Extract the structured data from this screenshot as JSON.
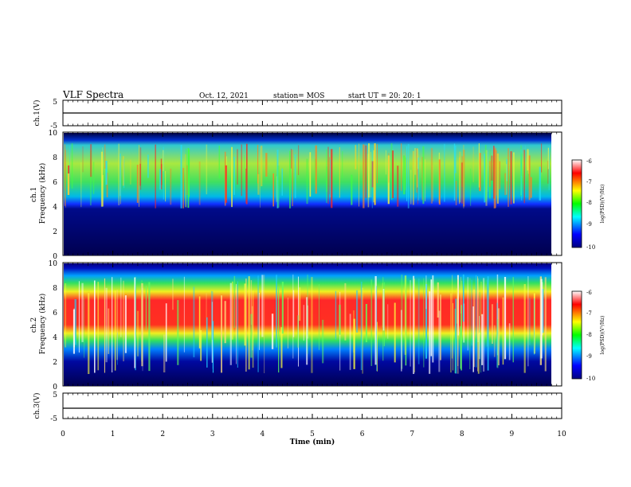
{
  "header": {
    "title": "VLF Spectra",
    "date": "Oct. 12, 2021",
    "station": "station= MOS",
    "start": "start  UT  =   20: 20: 1"
  },
  "colorbar": {
    "label": "log(PSD)(V²/Hz)",
    "ticks": [
      "-6",
      "-7",
      "-8",
      "-9",
      "-10"
    ]
  },
  "chart_data": [
    {
      "type": "line",
      "name": "ch1-voltage",
      "ylabel": "ch.1(V)",
      "yticks": [
        "5",
        "-5"
      ],
      "ylim": [
        -5,
        5
      ],
      "x": [
        0,
        10
      ],
      "values": [
        0,
        0
      ]
    },
    {
      "type": "heatmap",
      "name": "ch1-spectrogram",
      "ylabel": "ch.1\nFrequency (kHz)",
      "yticks": [
        "10",
        "8",
        "6",
        "4",
        "2",
        "0"
      ],
      "ylim": [
        0,
        10
      ],
      "colorscale": "jet",
      "zlim": [
        -10,
        -6
      ],
      "band_kHz": [
        4,
        9.5
      ]
    },
    {
      "type": "heatmap",
      "name": "ch2-spectrogram",
      "ylabel": "ch.2\nFrequency (kHz)",
      "yticks": [
        "10",
        "8",
        "6",
        "4",
        "2",
        "0"
      ],
      "ylim": [
        0,
        10
      ],
      "colorscale": "jet",
      "zlim": [
        -10,
        -6
      ],
      "band_kHz": [
        4,
        8
      ]
    },
    {
      "type": "line",
      "name": "ch3-voltage",
      "ylabel": "ch.3(V)",
      "yticks": [
        "5",
        "-5"
      ],
      "ylim": [
        -5,
        5
      ],
      "x": [
        0,
        10
      ],
      "values": [
        0,
        0
      ]
    }
  ],
  "xaxis": {
    "label": "Time  (min)",
    "ticks": [
      "0",
      "1",
      "2",
      "3",
      "4",
      "5",
      "6",
      "7",
      "8",
      "9",
      "10"
    ],
    "range": [
      0,
      10
    ]
  }
}
